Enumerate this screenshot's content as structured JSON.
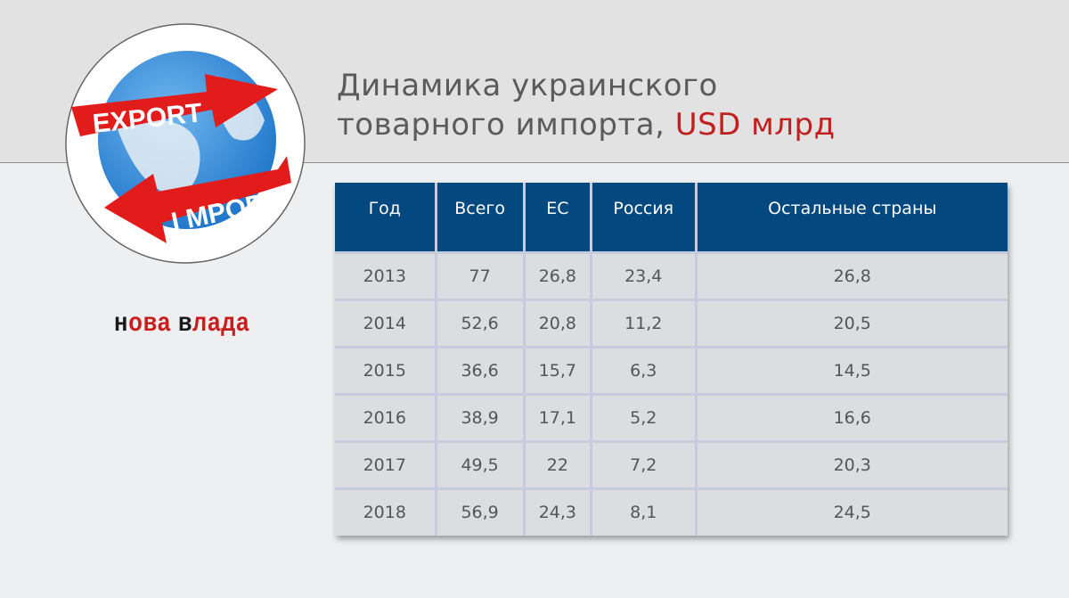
{
  "title": {
    "line1": "Динамика украинского",
    "line2": "товарного импорта, ",
    "unit": "USD млрд"
  },
  "logo": {
    "export": "EXPORT",
    "import": "I MPORT"
  },
  "brand": {
    "part1": "н",
    "part2": "ова ",
    "part3": "в",
    "part4": "лада"
  },
  "colors": {
    "header": "#03487f",
    "accent": "#c0201e",
    "row": "#dcdde0"
  },
  "chart_data": {
    "type": "table",
    "columns": [
      "Год",
      "Всего",
      "ЕС",
      "Россия",
      "Остальные страны"
    ],
    "rows": [
      [
        "2013",
        "77",
        "26,8",
        "23,4",
        "26,8"
      ],
      [
        "2014",
        "52,6",
        "20,8",
        "11,2",
        "20,5"
      ],
      [
        "2015",
        "36,6",
        "15,7",
        "6,3",
        "14,5"
      ],
      [
        "2016",
        "38,9",
        "17,1",
        "5,2",
        "16,6"
      ],
      [
        "2017",
        "49,5",
        "22",
        "7,2",
        "20,3"
      ],
      [
        "2018",
        "56,9",
        "24,3",
        "8,1",
        "24,5"
      ]
    ]
  }
}
